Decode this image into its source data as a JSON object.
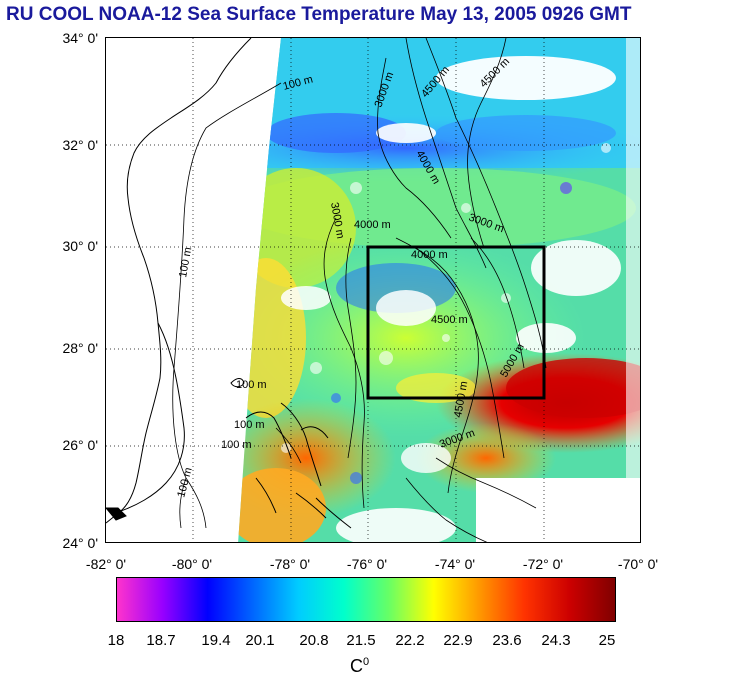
{
  "title": "RU COOL  NOAA-12 Sea Surface Temperature May 13, 2005 0926 GMT",
  "lat_labels": [
    "34° 0'",
    "32° 0'",
    "30° 0'",
    "28° 0'",
    "26° 0'",
    "24° 0'"
  ],
  "lon_labels": [
    "-82° 0'",
    "-80° 0'",
    "-78° 0'",
    "-76° 0'",
    "-74° 0'",
    "-72° 0'",
    "-70° 0'"
  ],
  "contour_labels": {
    "c1": "100 m",
    "c2": "100 m",
    "c3": "100 m",
    "c4": "100 m",
    "c5": "100 m",
    "c6": "100 m",
    "c7": "3000 m",
    "c8": "3000 m",
    "c9": "4000 m",
    "c10": "4000 m",
    "c11": "3000 m",
    "c12": "4500 m",
    "c13": "4500 m",
    "c14": "4000 m",
    "c15": "4500 m",
    "c16": "5000 m",
    "c17": "4500 m",
    "c18": "3000 m"
  },
  "colorbar": {
    "ticks": [
      "18",
      "18.7",
      "19.4",
      "20.1",
      "20.8",
      "21.5",
      "22.2",
      "22.9",
      "23.6",
      "24.3",
      "25"
    ],
    "colors": [
      "#ff33cc",
      "#9900ff",
      "#0000ff",
      "#0066ff",
      "#00ccff",
      "#00ffcc",
      "#66ff66",
      "#ffff00",
      "#ff9900",
      "#ff3300",
      "#cc0000",
      "#800000"
    ],
    "unit": "C",
    "unit_sup": "0"
  },
  "colors": {
    "title": "#1a1a9c",
    "box": "#000000",
    "land": "#ffffff",
    "cloud": "#ffffff"
  }
}
